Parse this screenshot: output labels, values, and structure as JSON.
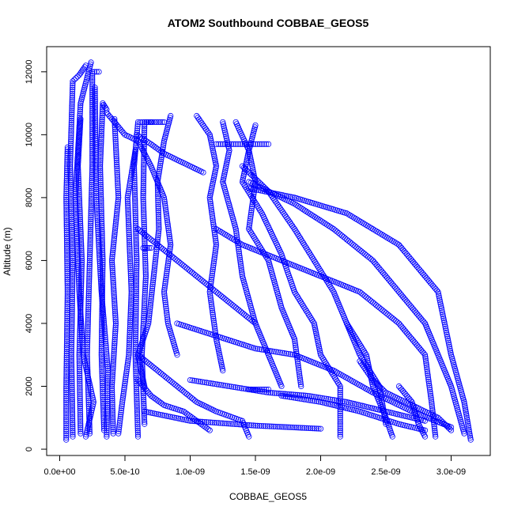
{
  "chart_data": {
    "type": "scatter",
    "title": "ATOM2 Southbound COBBAE_GEOS5",
    "xlabel": "COBBAE_GEOS5",
    "ylabel": "Altitude (m)",
    "xlim": [
      -1e-10,
      3.3e-09
    ],
    "ylim": [
      -200,
      12800
    ],
    "x_ticks": [
      {
        "value": 0,
        "label": "0.0e+00"
      },
      {
        "value": 5e-10,
        "label": "5.0e-10"
      },
      {
        "value": 1e-09,
        "label": "1.0e-09"
      },
      {
        "value": 1.5e-09,
        "label": "1.5e-09"
      },
      {
        "value": 2e-09,
        "label": "2.0e-09"
      },
      {
        "value": 2.5e-09,
        "label": "2.5e-09"
      },
      {
        "value": 3e-09,
        "label": "3.0e-09"
      }
    ],
    "y_ticks": [
      {
        "value": 0,
        "label": "0"
      },
      {
        "value": 2000,
        "label": "2000"
      },
      {
        "value": 4000,
        "label": "4000"
      },
      {
        "value": 6000,
        "label": "6000"
      },
      {
        "value": 8000,
        "label": "8000"
      },
      {
        "value": 10000,
        "label": "10000"
      },
      {
        "value": 12000,
        "label": "12000"
      }
    ],
    "marker": "open-circle",
    "color": "#0000ff",
    "grid": false,
    "legend": "none",
    "series": [
      {
        "points": [
          [
            5e-11,
            300
          ],
          [
            5e-11,
            2000
          ],
          [
            6e-11,
            5000
          ],
          [
            5e-11,
            8000
          ],
          [
            6e-11,
            9600
          ]
        ]
      },
      {
        "points": [
          [
            1e-10,
            400
          ],
          [
            9e-11,
            3000
          ],
          [
            1e-10,
            6000
          ],
          [
            8e-11,
            9000
          ],
          [
            1e-10,
            11700
          ],
          [
            1.5e-10,
            11900
          ],
          [
            2e-10,
            12200
          ]
        ]
      },
      {
        "points": [
          [
            1.6e-10,
            500
          ],
          [
            1.5e-10,
            3000
          ],
          [
            1.7e-10,
            6000
          ],
          [
            1.4e-10,
            9000
          ],
          [
            1.6e-10,
            10500
          ]
        ]
      },
      {
        "points": [
          [
            2.3e-10,
            500
          ],
          [
            2.1e-10,
            3000
          ],
          [
            2.3e-10,
            6000
          ],
          [
            2.5e-10,
            9000
          ],
          [
            2.5e-10,
            12000
          ],
          [
            3e-10,
            12000
          ]
        ]
      },
      {
        "points": [
          [
            2e-10,
            400
          ],
          [
            2.6e-10,
            1500
          ],
          [
            1.8e-10,
            3000
          ],
          [
            1.5e-10,
            5000
          ],
          [
            1.2e-10,
            8000
          ],
          [
            1.6e-10,
            11000
          ],
          [
            2.4e-10,
            12300
          ]
        ]
      },
      {
        "points": [
          [
            3.4e-10,
            600
          ],
          [
            3.2e-10,
            3000
          ],
          [
            3.3e-10,
            6000
          ],
          [
            3.1e-10,
            9000
          ],
          [
            3.3e-10,
            11000
          ],
          [
            3.6e-10,
            10800
          ]
        ]
      },
      {
        "points": [
          [
            3.6e-10,
            400
          ],
          [
            3.7e-10,
            2500
          ],
          [
            3.2e-10,
            5000
          ],
          [
            2.8e-10,
            8000
          ],
          [
            2.7e-10,
            11500
          ]
        ]
      },
      {
        "points": [
          [
            4.1e-10,
            500
          ],
          [
            4e-10,
            2000
          ],
          [
            4.3e-10,
            4000
          ],
          [
            4e-10,
            6000
          ],
          [
            4.5e-10,
            8000
          ],
          [
            4.2e-10,
            10500
          ]
        ]
      },
      {
        "points": [
          [
            6e-10,
            400
          ],
          [
            5.8e-10,
            3000
          ],
          [
            5.9e-10,
            6000
          ],
          [
            5.7e-10,
            9000
          ],
          [
            6e-10,
            10400
          ],
          [
            7e-10,
            10400
          ]
        ]
      },
      {
        "points": [
          [
            6.5e-10,
            800
          ],
          [
            6.3e-10,
            3000
          ],
          [
            6.6e-10,
            5500
          ],
          [
            6.4e-10,
            8000
          ],
          [
            6.5e-10,
            10400
          ],
          [
            8e-10,
            10400
          ]
        ]
      },
      {
        "points": [
          [
            6.4e-10,
            6400
          ],
          [
            7e-10,
            6400
          ]
        ]
      },
      {
        "points": [
          [
            4.5e-10,
            500
          ],
          [
            4.8e-10,
            1500
          ],
          [
            5.3e-10,
            3000
          ],
          [
            5.5e-10,
            5000
          ],
          [
            5.2e-10,
            8000
          ],
          [
            5.8e-10,
            9500
          ]
        ]
      },
      {
        "points": [
          [
            3.6e-10,
            10700
          ],
          [
            5e-10,
            10000
          ],
          [
            6e-10,
            9800
          ],
          [
            7e-10,
            9000
          ],
          [
            8e-10,
            8000
          ],
          [
            8.5e-10,
            6500
          ],
          [
            8e-10,
            5000
          ],
          [
            8.3e-10,
            4000
          ],
          [
            9e-10,
            3000
          ]
        ]
      },
      {
        "points": [
          [
            8.5e-10,
            10600
          ],
          [
            8e-10,
            9800
          ],
          [
            7.5e-10,
            8500
          ],
          [
            7.6e-10,
            7000
          ],
          [
            7.2e-10,
            5500
          ],
          [
            6.8e-10,
            4000
          ],
          [
            6e-10,
            3000
          ],
          [
            6.5e-10,
            2000
          ]
        ]
      },
      {
        "points": [
          [
            6e-10,
            2200
          ],
          [
            7e-10,
            1700
          ],
          [
            8e-10,
            1400
          ],
          [
            9.5e-10,
            1200
          ],
          [
            1.05e-09,
            900
          ],
          [
            1.15e-09,
            600
          ]
        ]
      },
      {
        "points": [
          [
            6e-10,
            3000
          ],
          [
            7.5e-10,
            2500
          ],
          [
            9e-10,
            2000
          ],
          [
            1.05e-09,
            1500
          ],
          [
            1.2e-09,
            1200
          ],
          [
            1.4e-09,
            900
          ],
          [
            1.45e-09,
            400
          ]
        ]
      },
      {
        "points": [
          [
            6.5e-10,
            1200
          ],
          [
            1e-09,
            900
          ],
          [
            1.5e-09,
            750
          ],
          [
            2e-09,
            650
          ]
        ]
      },
      {
        "points": [
          [
            5.9e-10,
            10000
          ],
          [
            7e-10,
            9700
          ],
          [
            8e-10,
            9400
          ],
          [
            9e-10,
            9200
          ],
          [
            1e-09,
            9000
          ],
          [
            1.1e-09,
            8800
          ]
        ]
      },
      {
        "points": [
          [
            6e-10,
            7000
          ],
          [
            7.5e-10,
            6500
          ],
          [
            9e-10,
            6000
          ],
          [
            1.05e-09,
            5500
          ],
          [
            1.2e-09,
            5000
          ],
          [
            1.35e-09,
            4500
          ],
          [
            1.5e-09,
            4000
          ]
        ]
      },
      {
        "points": [
          [
            1.05e-09,
            10600
          ],
          [
            1.15e-09,
            10000
          ],
          [
            1.2e-09,
            9000
          ],
          [
            1.15e-09,
            8000
          ],
          [
            1.2e-09,
            6500
          ],
          [
            1.15e-09,
            5000
          ],
          [
            1.2e-09,
            3500
          ],
          [
            1.25e-09,
            2500
          ]
        ]
      },
      {
        "points": [
          [
            1.25e-09,
            10400
          ],
          [
            1.3e-09,
            9500
          ],
          [
            1.25e-09,
            8500
          ],
          [
            1.35e-09,
            7000
          ],
          [
            1.4e-09,
            5500
          ],
          [
            1.5e-09,
            4000
          ],
          [
            1.6e-09,
            3000
          ],
          [
            1.7e-09,
            2000
          ]
        ]
      },
      {
        "points": [
          [
            1.35e-09,
            10400
          ],
          [
            1.45e-09,
            9500
          ],
          [
            1.5e-09,
            8500
          ],
          [
            1.45e-09,
            7000
          ],
          [
            1.6e-09,
            6000
          ],
          [
            1.7e-09,
            4500
          ],
          [
            1.8e-09,
            3500
          ],
          [
            1.85e-09,
            2000
          ]
        ]
      },
      {
        "points": [
          [
            1.2e-09,
            9700
          ],
          [
            1.3e-09,
            9700
          ],
          [
            1.4e-09,
            9700
          ],
          [
            1.5e-09,
            9700
          ],
          [
            1.6e-09,
            9700
          ]
        ]
      },
      {
        "points": [
          [
            1.5e-09,
            10300
          ],
          [
            1.45e-09,
            9500
          ],
          [
            1.4e-09,
            8500
          ],
          [
            1.55e-09,
            7500
          ],
          [
            1.7e-09,
            6200
          ],
          [
            1.8e-09,
            5000
          ],
          [
            1.95e-09,
            4000
          ],
          [
            2e-09,
            3000
          ],
          [
            2.15e-09,
            2000
          ],
          [
            2.15e-09,
            400
          ]
        ]
      },
      {
        "points": [
          [
            1.4e-09,
            9000
          ],
          [
            1.6e-09,
            8200
          ],
          [
            1.8e-09,
            7000
          ],
          [
            1.95e-09,
            6000
          ],
          [
            2.1e-09,
            5000
          ],
          [
            2.2e-09,
            4000
          ],
          [
            2.3e-09,
            3000
          ],
          [
            2.45e-09,
            2000
          ],
          [
            2.5e-09,
            800
          ]
        ]
      },
      {
        "points": [
          [
            1.45e-09,
            8500
          ],
          [
            1.8e-09,
            7800
          ],
          [
            2.1e-09,
            7000
          ],
          [
            2.4e-09,
            6000
          ],
          [
            2.6e-09,
            5000
          ],
          [
            2.8e-09,
            4000
          ],
          [
            2.9e-09,
            3000
          ],
          [
            3e-09,
            2000
          ],
          [
            3.1e-09,
            500
          ]
        ]
      },
      {
        "points": [
          [
            1.45e-09,
            8300
          ],
          [
            1.8e-09,
            8000
          ],
          [
            2.2e-09,
            7500
          ],
          [
            2.6e-09,
            6500
          ],
          [
            2.9e-09,
            5000
          ],
          [
            3e-09,
            3000
          ],
          [
            3.1e-09,
            1500
          ],
          [
            3.15e-09,
            300
          ]
        ]
      },
      {
        "points": [
          [
            1.2e-09,
            7000
          ],
          [
            1.4e-09,
            6500
          ],
          [
            1.7e-09,
            6000
          ],
          [
            2e-09,
            5500
          ],
          [
            2.3e-09,
            5000
          ],
          [
            2.6e-09,
            4000
          ],
          [
            2.8e-09,
            3000
          ],
          [
            2.85e-09,
            1500
          ],
          [
            2.88e-09,
            400
          ]
        ]
      },
      {
        "points": [
          [
            9e-10,
            4000
          ],
          [
            1.2e-09,
            3600
          ],
          [
            1.5e-09,
            3200
          ],
          [
            1.8e-09,
            3000
          ],
          [
            2.1e-09,
            2500
          ],
          [
            2.4e-09,
            1800
          ],
          [
            2.7e-09,
            1200
          ],
          [
            3e-09,
            700
          ]
        ]
      },
      {
        "points": [
          [
            1e-09,
            2200
          ],
          [
            1.3e-09,
            2000
          ],
          [
            1.6e-09,
            1800
          ],
          [
            1.9e-09,
            1700
          ],
          [
            2.2e-09,
            1500
          ],
          [
            2.5e-09,
            1200
          ],
          [
            2.8e-09,
            900
          ]
        ]
      },
      {
        "points": [
          [
            1.45e-09,
            1900
          ],
          [
            1.55e-09,
            1900
          ],
          [
            1.6e-09,
            1900
          ]
        ]
      },
      {
        "points": [
          [
            1.7e-09,
            1700
          ],
          [
            2e-09,
            1500
          ],
          [
            2.3e-09,
            1200
          ],
          [
            2.6e-09,
            800
          ],
          [
            2.8e-09,
            600
          ]
        ]
      },
      {
        "points": [
          [
            2.2e-09,
            4000
          ],
          [
            2.35e-09,
            3000
          ],
          [
            2.4e-09,
            2000
          ],
          [
            2.5e-09,
            1000
          ],
          [
            2.55e-09,
            400
          ]
        ]
      },
      {
        "points": [
          [
            2.6e-09,
            2000
          ],
          [
            2.7e-09,
            1500
          ],
          [
            2.75e-09,
            800
          ],
          [
            2.8e-09,
            400
          ]
        ]
      },
      {
        "points": [
          [
            2.3e-09,
            2800
          ],
          [
            2.4e-09,
            2200
          ],
          [
            2.5e-09,
            1800
          ],
          [
            2.7e-09,
            1400
          ],
          [
            2.9e-09,
            1000
          ],
          [
            3e-09,
            600
          ]
        ]
      }
    ]
  }
}
